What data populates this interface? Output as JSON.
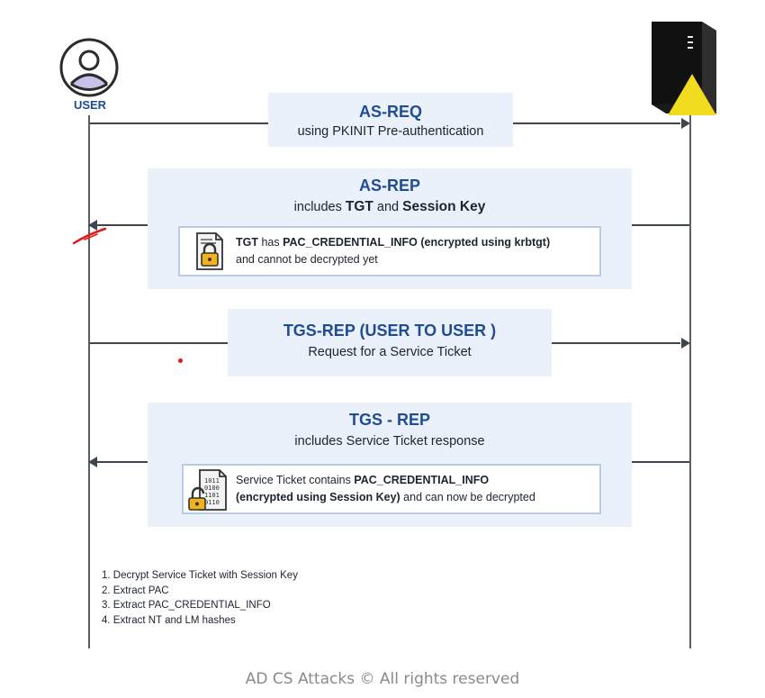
{
  "actors": {
    "user_label": "USER"
  },
  "messages": {
    "as_req": {
      "title": "AS-REQ",
      "subtitle": "using PKINIT Pre-authentication"
    },
    "as_rep": {
      "title": "AS-REP",
      "sub_pre": "includes ",
      "sub_tgt": "TGT",
      "sub_and": " and ",
      "sub_key": "Session Key",
      "note_tgt": "TGT",
      "note_has": " has ",
      "note_pac": "PAC_CREDENTIAL_INFO (encrypted using krbtgt)",
      "note_line2": "and cannot be decrypted yet"
    },
    "tgs_req": {
      "title": "TGS-REP (USER TO USER )",
      "subtitle": "Request for a Service Ticket"
    },
    "tgs_rep": {
      "title": "TGS - REP",
      "subtitle": "includes Service Ticket response",
      "note_pre": "Service Ticket contains ",
      "note_pac": "PAC_CREDENTIAL_INFO",
      "note_bold2": "(encrypted using Session Key)",
      "note_tail": " and can now be decrypted"
    }
  },
  "steps": [
    "1. Decrypt Service Ticket with Session Key",
    "2. Extract PAC",
    "3. Extract PAC_CREDENTIAL_INFO",
    "4. Extract NT and LM hashes"
  ],
  "footer": "AD CS Attacks © All rights reserved",
  "colors": {
    "accent": "#1f4c94",
    "box_bg": "#eaf1fb",
    "warning": "#f2dc1f",
    "annotation": "#e01b1b"
  },
  "icons": [
    "user-avatar-icon",
    "server-icon",
    "warning-triangle-icon",
    "locked-document-icon",
    "unlocked-binary-document-icon"
  ]
}
